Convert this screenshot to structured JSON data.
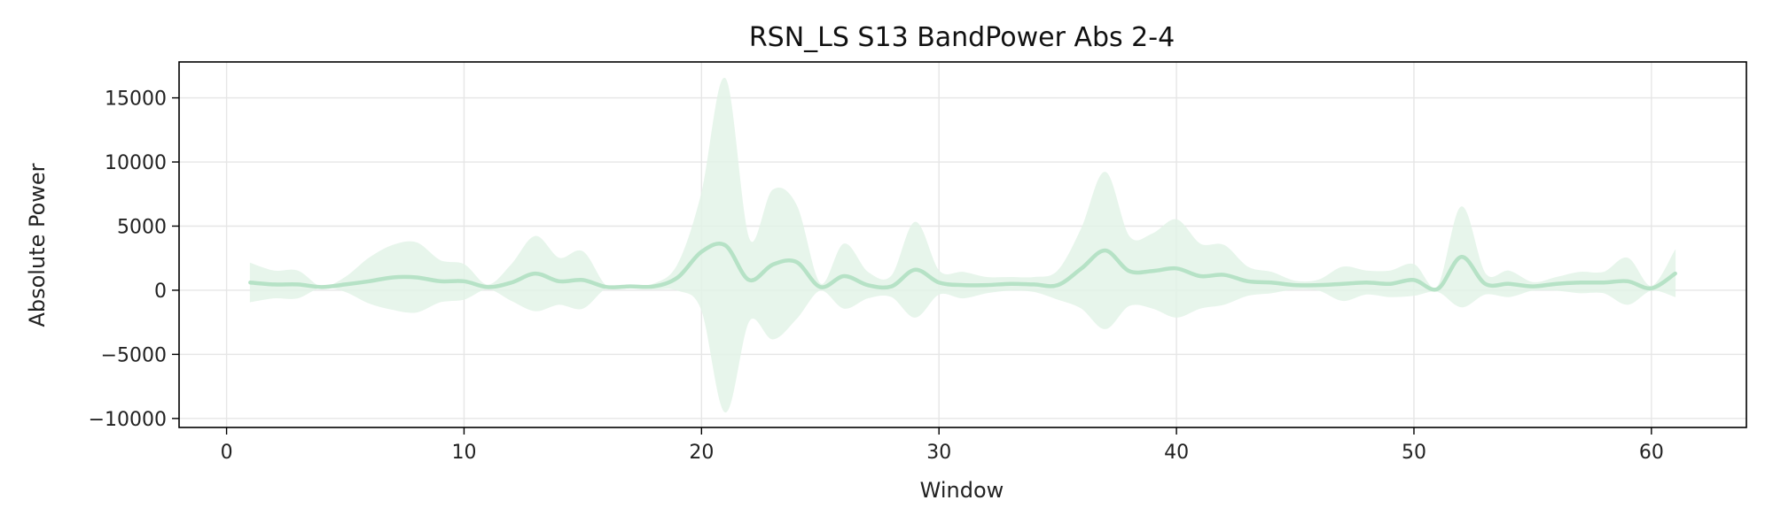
{
  "chart_data": {
    "type": "line",
    "title": "RSN_LS S13 BandPower Abs 2-4",
    "xlabel": "Window",
    "ylabel": "Absolute Power",
    "xlim": [
      -2,
      64
    ],
    "ylim": [
      -10700,
      17800
    ],
    "xticks": [
      0,
      10,
      20,
      30,
      40,
      50,
      60
    ],
    "yticks": [
      -10000,
      -5000,
      0,
      5000,
      10000,
      15000
    ],
    "ytick_labels": [
      "−10000",
      "−5000",
      "0",
      "5000",
      "10000",
      "15000"
    ],
    "grid": true,
    "colors": {
      "line": "#b6e2c6",
      "band": "#e3f4e8",
      "grid": "#e6e6e6",
      "axis": "#000000"
    },
    "series": [
      {
        "x": [
          1,
          2,
          3,
          4,
          5,
          6,
          7,
          8,
          9,
          10,
          11,
          12,
          13,
          14,
          15,
          16,
          17,
          18,
          19,
          20,
          21,
          22,
          23,
          24,
          25,
          26,
          27,
          28,
          29,
          30,
          31,
          32,
          33,
          34,
          35,
          36,
          37,
          38,
          39,
          40,
          41,
          42,
          43,
          44,
          45,
          46,
          47,
          48,
          49,
          50,
          51,
          52,
          53,
          54,
          55,
          56,
          57,
          58,
          59,
          60,
          61
        ],
        "mean": [
          600,
          450,
          450,
          250,
          450,
          700,
          1000,
          1000,
          700,
          700,
          250,
          600,
          1300,
          700,
          800,
          250,
          300,
          300,
          1000,
          3000,
          3500,
          800,
          2000,
          2200,
          250,
          1100,
          400,
          300,
          1600,
          600,
          400,
          400,
          500,
          450,
          400,
          1700,
          3100,
          1500,
          1500,
          1700,
          1100,
          1200,
          700,
          600,
          400,
          400,
          500,
          600,
          500,
          800,
          100,
          2600,
          500,
          500,
          300,
          500,
          600,
          600,
          700,
          150,
          1300
        ],
        "upper": [
          2100,
          1500,
          1500,
          250,
          1000,
          2500,
          3500,
          3700,
          2300,
          2000,
          400,
          2000,
          4200,
          2500,
          3000,
          300,
          400,
          500,
          2000,
          7500,
          16500,
          4000,
          7800,
          6600,
          500,
          3600,
          1400,
          1100,
          5300,
          1500,
          1400,
          1000,
          1000,
          1000,
          1500,
          4800,
          9200,
          4200,
          4400,
          5500,
          3600,
          3500,
          1800,
          1400,
          700,
          800,
          1800,
          1500,
          1500,
          2000,
          300,
          6500,
          1300,
          1500,
          600,
          1000,
          1400,
          1400,
          2500,
          300,
          3100
        ],
        "lower": [
          -900,
          -600,
          -600,
          250,
          -100,
          -1000,
          -1500,
          -1700,
          -900,
          -700,
          100,
          -800,
          -1600,
          -1100,
          -1400,
          200,
          200,
          100,
          0,
          -1500,
          -9500,
          -2400,
          -3800,
          -2200,
          0,
          -1400,
          -600,
          -500,
          -2100,
          -300,
          -600,
          -200,
          0,
          -100,
          -700,
          -1400,
          -3000,
          -1200,
          -1400,
          -2100,
          -1400,
          -1100,
          -400,
          -200,
          100,
          0,
          -800,
          -300,
          -500,
          -400,
          -100,
          -1300,
          -300,
          -500,
          0,
          0,
          -200,
          -200,
          -1100,
          0,
          -500
        ]
      }
    ]
  }
}
